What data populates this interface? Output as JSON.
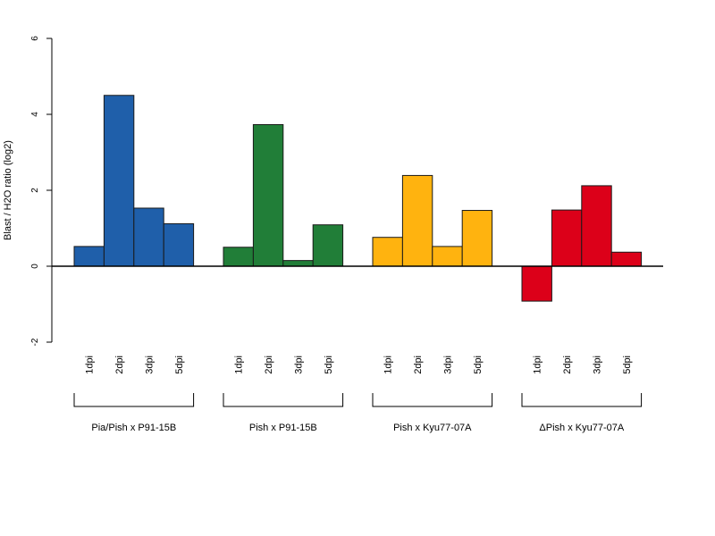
{
  "chart_data": {
    "type": "bar",
    "title": "",
    "ylabel": "Blast / H2O ratio (log2)",
    "ylim": [
      -2,
      6
    ],
    "yticks": [
      -2,
      0,
      2,
      4,
      6
    ],
    "grid": false,
    "categories": [
      "1dpi",
      "2dpi",
      "3dpi",
      "5dpi"
    ],
    "groups": [
      {
        "label": "Pia/Pish x P91-15B",
        "color": "#1f5faa",
        "values": [
          0.52,
          4.5,
          1.53,
          1.12
        ]
      },
      {
        "label": "Pish x P91-15B",
        "color": "#217e38",
        "values": [
          0.5,
          3.73,
          0.15,
          1.09
        ]
      },
      {
        "label": "Pish x Kyu77-07A",
        "color": "#ffb30f",
        "values": [
          0.76,
          2.39,
          0.52,
          1.47
        ]
      },
      {
        "label": "ΔPish x Kyu77-07A",
        "color": "#dc0019",
        "values": [
          -0.92,
          1.48,
          2.12,
          0.37
        ]
      }
    ]
  }
}
